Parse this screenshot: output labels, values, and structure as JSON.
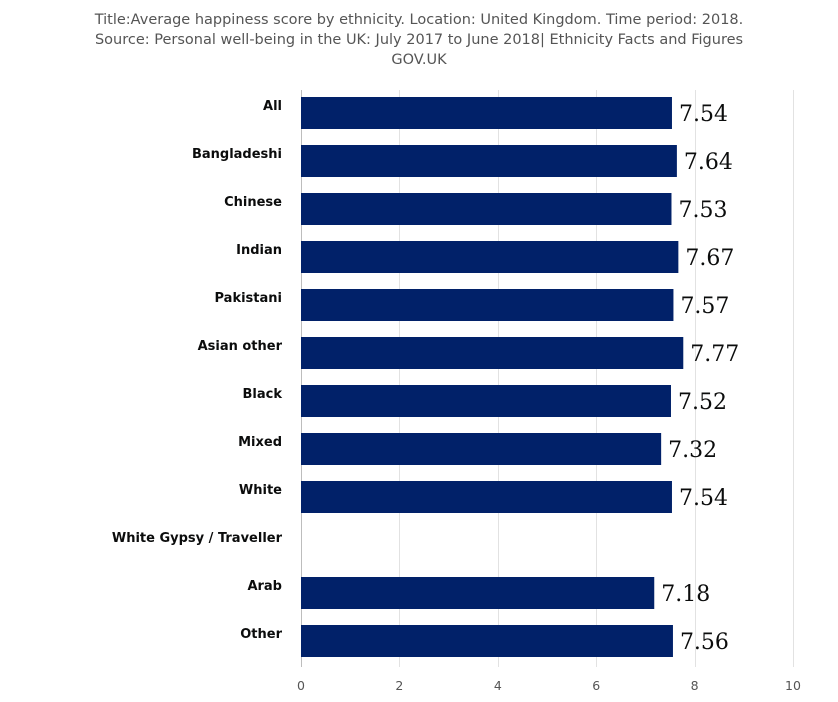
{
  "chart_data": {
    "type": "bar",
    "orientation": "horizontal",
    "title_lines": [
      "Title:Average happiness score by ethnicity. Location: United Kingdom. Time period: 2018.",
      "Source: Personal well-being in the UK: July 2017 to June 2018| Ethnicity Facts and Figures",
      "GOV.UK"
    ],
    "categories": [
      "All",
      "Bangladeshi",
      "Chinese",
      "Indian",
      "Pakistani",
      "Asian other",
      "Black",
      "Mixed",
      "White",
      "White Gypsy / Traveller",
      "Arab",
      "Other"
    ],
    "values": [
      7.54,
      7.64,
      7.53,
      7.67,
      7.57,
      7.77,
      7.52,
      7.32,
      7.54,
      null,
      7.18,
      7.56
    ],
    "value_labels": [
      "7.54",
      "7.64",
      "7.53",
      "7.67",
      "7.57",
      "7.77",
      "7.52",
      "7.32",
      "7.54",
      "",
      "7.18",
      "7.56"
    ],
    "xlim": [
      0,
      10
    ],
    "xticks": [
      0,
      2,
      4,
      6,
      8,
      10
    ],
    "xtick_labels": [
      "0",
      "2",
      "4",
      "6",
      "8",
      "10"
    ],
    "bar_color": "#012169",
    "grid": true,
    "legend": "none"
  }
}
